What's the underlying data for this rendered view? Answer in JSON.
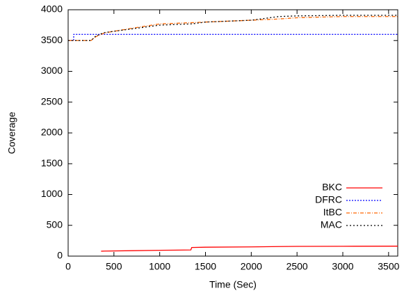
{
  "chart_data": {
    "type": "line",
    "xlabel": "Time (Sec)",
    "ylabel": "Coverage",
    "x": [
      0,
      60,
      61,
      250,
      300,
      360,
      400,
      700,
      1000,
      1340,
      1350,
      1500,
      2000,
      2300,
      2500,
      3000,
      3600
    ],
    "series": [
      {
        "name": "BKC",
        "color": "#ff0000",
        "dash": "none",
        "values": [
          null,
          null,
          null,
          null,
          null,
          80,
          82,
          88,
          95,
          100,
          140,
          145,
          150,
          155,
          158,
          160,
          162
        ]
      },
      {
        "name": "DFRC",
        "color": "#0000ff",
        "dash": "2,2",
        "values": [
          3500,
          3500,
          3600,
          3600,
          3600,
          3600,
          3600,
          3600,
          3600,
          3600,
          3600,
          3600,
          3600,
          3600,
          3600,
          3600,
          3600
        ]
      },
      {
        "name": "ItBC",
        "color": "#ff6600",
        "dash": "5,2,1,2",
        "values": [
          3500,
          3500,
          3500,
          3500,
          3560,
          3600,
          3625,
          3700,
          3770,
          3790,
          3790,
          3800,
          3830,
          3850,
          3870,
          3890,
          3890
        ]
      },
      {
        "name": "MAC",
        "color": "#000000",
        "dash": "2,3",
        "values": [
          3500,
          3500,
          3500,
          3500,
          3570,
          3610,
          3630,
          3690,
          3750,
          3770,
          3770,
          3800,
          3830,
          3890,
          3900,
          3910,
          3910
        ]
      }
    ],
    "xlim": [
      0,
      3600
    ],
    "xticks": [
      0,
      500,
      1000,
      1500,
      2000,
      2500,
      3000,
      3500
    ],
    "ylim": [
      0,
      4000
    ],
    "yticks": [
      0,
      500,
      1000,
      1500,
      2000,
      2500,
      3000,
      3500,
      4000
    ],
    "grid": false,
    "legend": "lower-right"
  }
}
